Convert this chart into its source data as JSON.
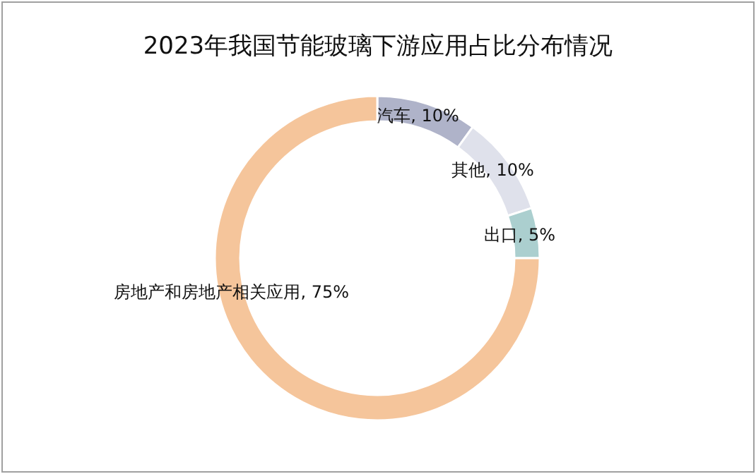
{
  "chart_data": {
    "type": "donut",
    "title": "2023年我国节能玻璃下游应用占比分布情况",
    "categories": [
      "汽车",
      "其他",
      "出口",
      "房地产和房地产相关应用"
    ],
    "values": [
      10,
      10,
      5,
      75
    ],
    "colors": [
      "#afb3c9",
      "#dfe1eb",
      "#abcfcf",
      "#f5c59b"
    ],
    "value_labels": [
      ", 10%",
      ", 10%",
      ", 5%",
      ", 75%"
    ]
  }
}
